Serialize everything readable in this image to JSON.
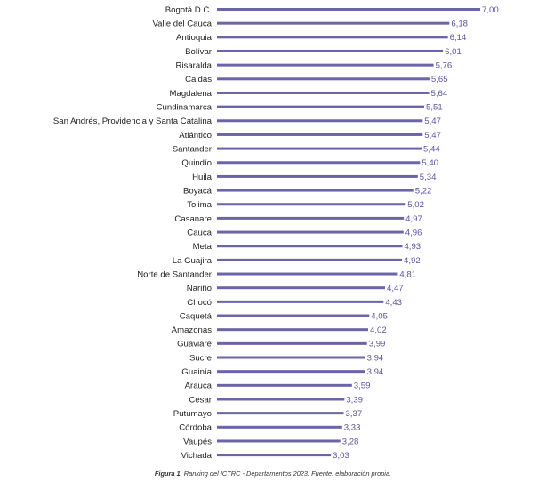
{
  "chart_data": {
    "type": "bar",
    "orientation": "horizontal",
    "categories": [
      "Bogotá D.C.",
      "Valle del Cauca",
      "Antioquia",
      "Bolívar",
      "Risaralda",
      "Caldas",
      "Magdalena",
      "Cundinamarca",
      "San Andrés, Providencia y Santa Catalina",
      "Atlántico",
      "Santander",
      "Quindío",
      "Huila",
      "Boyacá",
      "Tolima",
      "Casanare",
      "Cauca",
      "Meta",
      "La Guajira",
      "Norte de Santander",
      "Nariño",
      "Chocó",
      "Caquetá",
      "Amazonas",
      "Guaviare",
      "Sucre",
      "Guainía",
      "Arauca",
      "Cesar",
      "Putumayo",
      "Córdoba",
      "Vaupés",
      "Vichada"
    ],
    "values": [
      7.0,
      6.18,
      6.14,
      6.01,
      5.76,
      5.65,
      5.64,
      5.51,
      5.47,
      5.47,
      5.44,
      5.4,
      5.34,
      5.22,
      5.02,
      4.97,
      4.96,
      4.93,
      4.92,
      4.81,
      4.47,
      4.43,
      4.05,
      4.02,
      3.99,
      3.94,
      3.94,
      3.59,
      3.39,
      3.37,
      3.33,
      3.28,
      3.03
    ],
    "value_labels": [
      "7,00",
      "6,18",
      "6,14",
      "6,01",
      "5,76",
      "5,65",
      "5,64",
      "5,51",
      "5,47",
      "5,47",
      "5,44",
      "5,40",
      "5,34",
      "5,22",
      "5,02",
      "4,97",
      "4,96",
      "4,93",
      "4,92",
      "4,81",
      "4,47",
      "4,43",
      "4,05",
      "4,02",
      "3,99",
      "3,94",
      "3,94",
      "3,59",
      "3,39",
      "3,37",
      "3,33",
      "3,28",
      "3,03"
    ],
    "xlim": [
      0,
      7
    ],
    "grid": false,
    "legend": "none",
    "bar_color": "#6b64a8",
    "label_color": "#5a54a4"
  },
  "caption": {
    "figure_number": "Figura 1.",
    "text": "Ranking del ICTRC - Departamentos 2023. Fuente: elaboración propia."
  }
}
